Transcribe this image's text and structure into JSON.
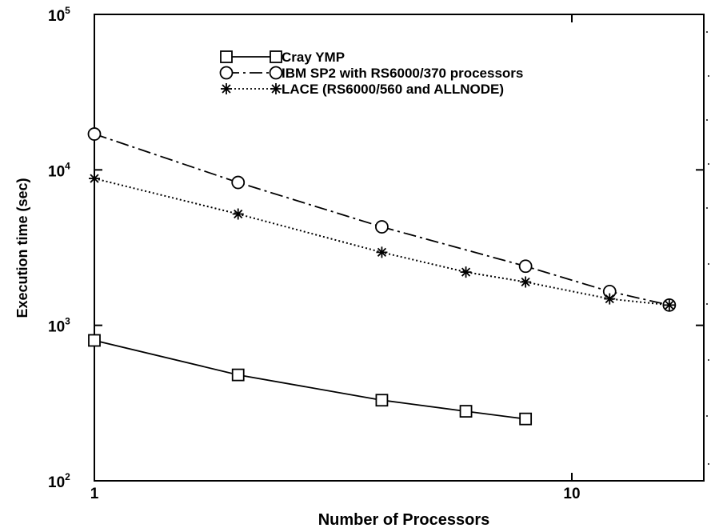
{
  "chart_data": {
    "type": "line",
    "xscale": "log",
    "yscale": "log",
    "xlabel": "Number of Processors",
    "ylabel": "Execution time (sec)",
    "xlim": [
      1,
      16
    ],
    "ylim": [
      100,
      100000
    ],
    "x_ticks": [
      {
        "value": 1,
        "label": "1"
      },
      {
        "value": 10,
        "label": "10"
      }
    ],
    "y_ticks": [
      {
        "value": 100,
        "base": "10",
        "exp": "2"
      },
      {
        "value": 1000,
        "base": "10",
        "exp": "3"
      },
      {
        "value": 10000,
        "base": "10",
        "exp": "4"
      },
      {
        "value": 100000,
        "base": "10",
        "exp": "5"
      }
    ],
    "grid": false,
    "legend_position": "top-right",
    "series": [
      {
        "name": "Cray YMP",
        "marker": "square",
        "line_style": "solid",
        "x": [
          1,
          2,
          4,
          6,
          8
        ],
        "y": [
          800,
          480,
          330,
          280,
          250
        ]
      },
      {
        "name": "IBM SP2 with RS6000/370 processors",
        "marker": "circle",
        "line_style": "dashdot",
        "x": [
          1,
          2,
          4,
          8,
          12,
          16
        ],
        "y": [
          17000,
          8300,
          4300,
          2400,
          1650,
          1350
        ]
      },
      {
        "name": "LACE (RS6000/560 and ALLNODE)",
        "marker": "asterisk",
        "line_style": "dotted",
        "x": [
          1,
          2,
          4,
          6,
          8,
          12,
          16
        ],
        "y": [
          8800,
          5200,
          2950,
          2200,
          1900,
          1480,
          1350
        ]
      }
    ]
  }
}
